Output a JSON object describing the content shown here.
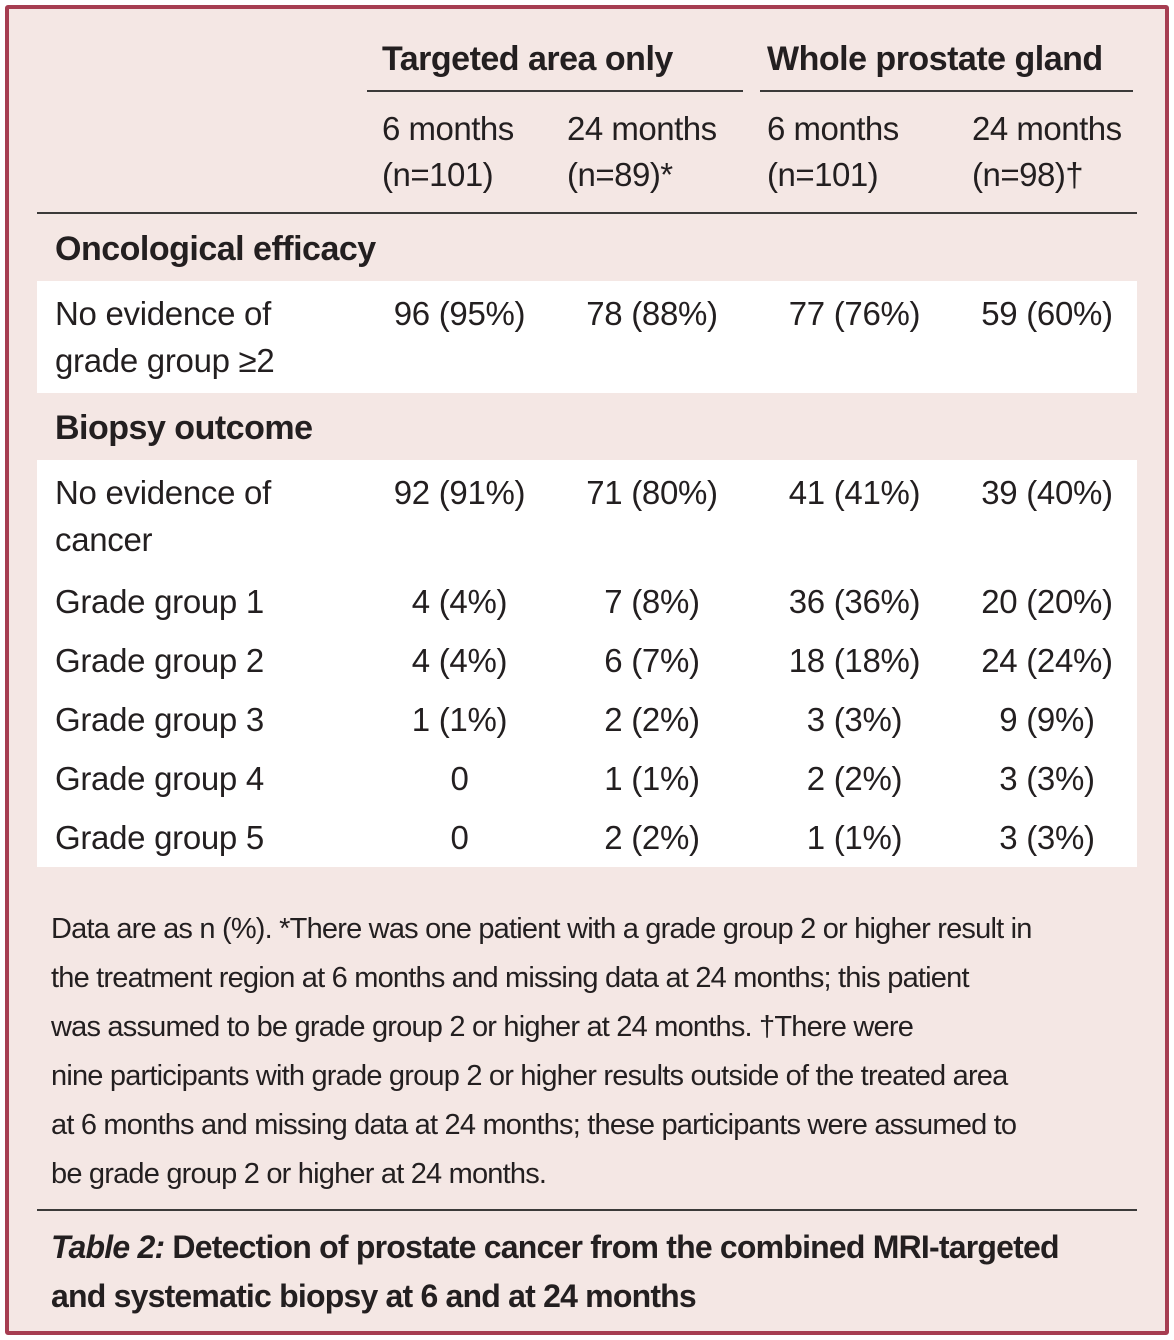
{
  "colors": {
    "frame_border": "#a63d51",
    "background_pink": "#f4e7e4",
    "row_white": "#ffffff",
    "text": "#231f20",
    "rule": "#3b3a39"
  },
  "table": {
    "spanners": [
      {
        "label": "Targeted area only"
      },
      {
        "label": "Whole prostate gland"
      }
    ],
    "columns": [
      {
        "line1": "6 months",
        "line2": "(n=101)"
      },
      {
        "line1": "24 months",
        "line2": "(n=89)*"
      },
      {
        "line1": "6 months",
        "line2": "(n=101)"
      },
      {
        "line1": "24 months",
        "line2": "(n=98)†"
      }
    ],
    "sections": [
      {
        "title": "Oncological efficacy",
        "rows": [
          {
            "label": "No evidence of grade group ≥2",
            "values": [
              "96 (95%)",
              "78 (88%)",
              "77 (76%)",
              "59 (60%)"
            ]
          }
        ]
      },
      {
        "title": "Biopsy outcome",
        "rows": [
          {
            "label": "No evidence of cancer",
            "values": [
              "92 (91%)",
              "71 (80%)",
              "41 (41%)",
              "39 (40%)"
            ]
          },
          {
            "label": "Grade group 1",
            "values": [
              "4 (4%)",
              "7 (8%)",
              "36 (36%)",
              "20 (20%)"
            ]
          },
          {
            "label": "Grade group 2",
            "values": [
              "4 (4%)",
              "6 (7%)",
              "18 (18%)",
              "24 (24%)"
            ]
          },
          {
            "label": "Grade group 3",
            "values": [
              "1 (1%)",
              "2 (2%)",
              "3 (3%)",
              "9 (9%)"
            ]
          },
          {
            "label": "Grade group 4",
            "values": [
              "0",
              "1 (1%)",
              "2 (2%)",
              "3 (3%)"
            ]
          },
          {
            "label": "Grade group 5",
            "values": [
              "0",
              "2 (2%)",
              "1 (1%)",
              "3 (3%)"
            ]
          }
        ]
      }
    ]
  },
  "footnote": {
    "text": "Data are as n (%). *There was one patient with a grade group 2 or higher result in\nthe treatment region at 6 months and missing data at 24 months; this patient\nwas assumed to be grade group 2 or higher at 24 months. †There were\nnine participants with grade group 2 or higher results outside of the treated area\nat 6 months and missing data at 24 months; these participants were assumed to\nbe grade group 2 or higher at 24 months."
  },
  "caption": {
    "prefix": "Table 2:",
    "rest": " Detection of prostate cancer from the combined MRI-targeted\nand systematic biopsy at 6 and at 24 months"
  },
  "chart_data": {
    "type": "table",
    "column_groups": [
      "Targeted area only",
      "Whole prostate gland"
    ],
    "columns": [
      "6 months (n=101)",
      "24 months (n=89)*",
      "6 months (n=101)",
      "24 months (n=98)†"
    ],
    "rows": [
      {
        "section": "Oncological efficacy",
        "label": "No evidence of grade group ≥2",
        "n": [
          96,
          78,
          77,
          59
        ],
        "pct": [
          95,
          88,
          76,
          60
        ]
      },
      {
        "section": "Biopsy outcome",
        "label": "No evidence of cancer",
        "n": [
          92,
          71,
          41,
          39
        ],
        "pct": [
          91,
          80,
          41,
          40
        ]
      },
      {
        "section": "Biopsy outcome",
        "label": "Grade group 1",
        "n": [
          4,
          7,
          36,
          20
        ],
        "pct": [
          4,
          8,
          36,
          20
        ]
      },
      {
        "section": "Biopsy outcome",
        "label": "Grade group 2",
        "n": [
          4,
          6,
          18,
          24
        ],
        "pct": [
          4,
          7,
          18,
          24
        ]
      },
      {
        "section": "Biopsy outcome",
        "label": "Grade group 3",
        "n": [
          1,
          2,
          3,
          9
        ],
        "pct": [
          1,
          2,
          3,
          9
        ]
      },
      {
        "section": "Biopsy outcome",
        "label": "Grade group 4",
        "n": [
          0,
          1,
          2,
          3
        ],
        "pct": [
          0,
          1,
          2,
          3
        ]
      },
      {
        "section": "Biopsy outcome",
        "label": "Grade group 5",
        "n": [
          0,
          2,
          1,
          3
        ],
        "pct": [
          0,
          2,
          1,
          3
        ]
      }
    ]
  }
}
